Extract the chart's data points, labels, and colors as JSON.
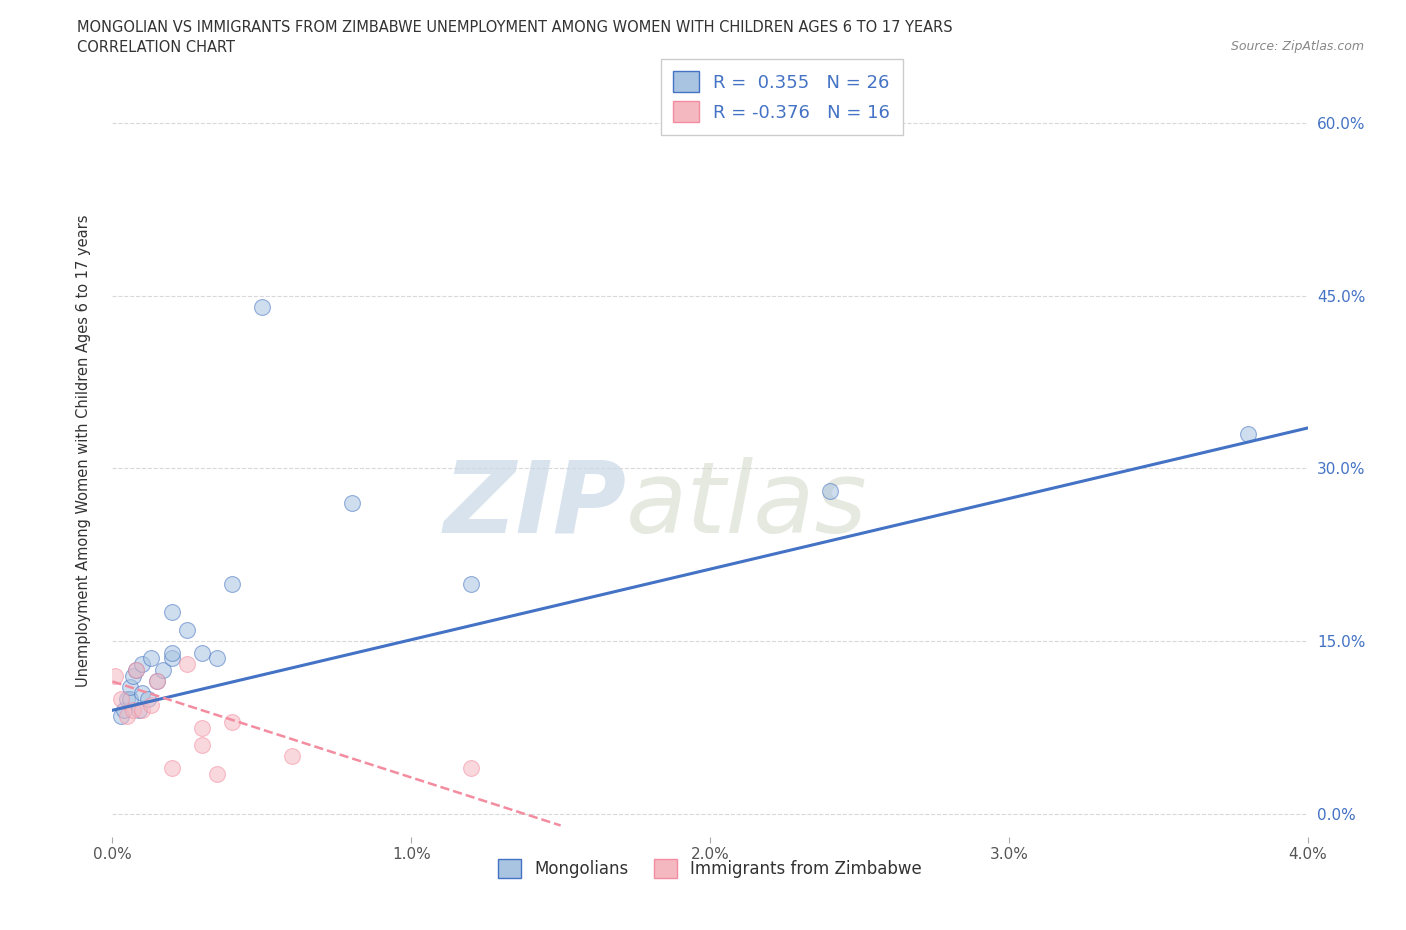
{
  "title_line1": "MONGOLIAN VS IMMIGRANTS FROM ZIMBABWE UNEMPLOYMENT AMONG WOMEN WITH CHILDREN AGES 6 TO 17 YEARS",
  "title_line2": "CORRELATION CHART",
  "source_text": "Source: ZipAtlas.com",
  "ylabel": "Unemployment Among Women with Children Ages 6 to 17 years",
  "xlim": [
    0.0,
    0.04
  ],
  "ylim": [
    -0.02,
    0.65
  ],
  "x_ticks": [
    0.0,
    0.01,
    0.02,
    0.03,
    0.04
  ],
  "x_tick_labels": [
    "0.0%",
    "1.0%",
    "2.0%",
    "3.0%",
    "4.0%"
  ],
  "y_ticks": [
    0.0,
    0.15,
    0.3,
    0.45,
    0.6
  ],
  "y_tick_labels": [
    "0.0%",
    "15.0%",
    "30.0%",
    "45.0%",
    "60.0%"
  ],
  "mongolian_color": "#a8c4e0",
  "zimbabwe_color": "#f4b8c1",
  "mongolian_line_color": "#4472c4",
  "zimbabwe_line_color": "#f48ca0",
  "legend_text_color": "#4472c4",
  "watermark_zip": "ZIP",
  "watermark_atlas": "atlas",
  "mongolian_scatter_x": [
    0.0003,
    0.0004,
    0.0005,
    0.0006,
    0.0006,
    0.0007,
    0.0008,
    0.0009,
    0.001,
    0.001,
    0.0012,
    0.0013,
    0.0015,
    0.0017,
    0.002,
    0.002,
    0.002,
    0.0025,
    0.003,
    0.0035,
    0.004,
    0.005,
    0.008,
    0.012,
    0.024,
    0.038
  ],
  "mongolian_scatter_y": [
    0.085,
    0.09,
    0.1,
    0.1,
    0.11,
    0.12,
    0.125,
    0.09,
    0.105,
    0.13,
    0.1,
    0.135,
    0.115,
    0.125,
    0.135,
    0.14,
    0.175,
    0.16,
    0.14,
    0.135,
    0.2,
    0.44,
    0.27,
    0.2,
    0.28,
    0.33
  ],
  "zimbabwe_scatter_x": [
    0.0001,
    0.0003,
    0.0005,
    0.0007,
    0.0008,
    0.001,
    0.0013,
    0.0015,
    0.002,
    0.0025,
    0.003,
    0.003,
    0.0035,
    0.004,
    0.006,
    0.012
  ],
  "zimbabwe_scatter_y": [
    0.12,
    0.1,
    0.085,
    0.09,
    0.125,
    0.09,
    0.095,
    0.115,
    0.04,
    0.13,
    0.075,
    0.06,
    0.035,
    0.08,
    0.05,
    0.04
  ],
  "mongolian_trend_x": [
    0.0,
    0.04
  ],
  "mongolian_trend_y": [
    0.09,
    0.335
  ],
  "zimbabwe_trend_x": [
    0.0,
    0.015
  ],
  "zimbabwe_trend_y": [
    0.115,
    -0.01
  ],
  "grid_color": "#d0d0d0",
  "bg_color": "#ffffff",
  "scatter_size": 130,
  "scatter_alpha": 0.55
}
